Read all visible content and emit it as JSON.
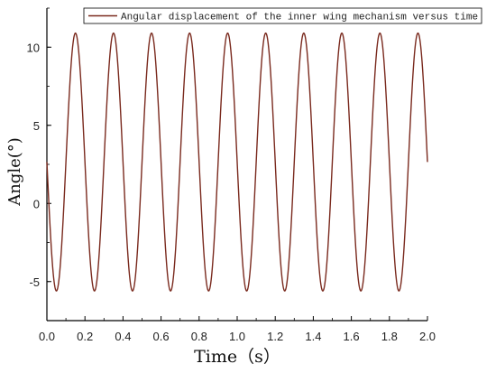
{
  "chart_data": {
    "type": "line",
    "xlabel": "Time（s）",
    "ylabel": "Angle(°)",
    "xlim": [
      0.0,
      2.0
    ],
    "ylim": [
      -7.5,
      12.5
    ],
    "xticks": [
      "0.0",
      "0.2",
      "0.4",
      "0.6",
      "0.8",
      "1.0",
      "1.2",
      "1.4",
      "1.6",
      "1.8",
      "2.0"
    ],
    "yticks": [
      "-5",
      "0",
      "5",
      "10"
    ],
    "legend": {
      "position": "top-right",
      "entries": [
        "Angular displacement of the inner wing mechanism versus time"
      ]
    },
    "series": [
      {
        "name": "Angular displacement of the inner wing mechanism versus time",
        "color": "#7a2a1e",
        "frequency_hz": 5,
        "max": 10.9,
        "min": -5.6,
        "first_min_t": 0.05,
        "t_range": [
          0.0,
          2.0
        ]
      }
    ],
    "grid": false
  }
}
